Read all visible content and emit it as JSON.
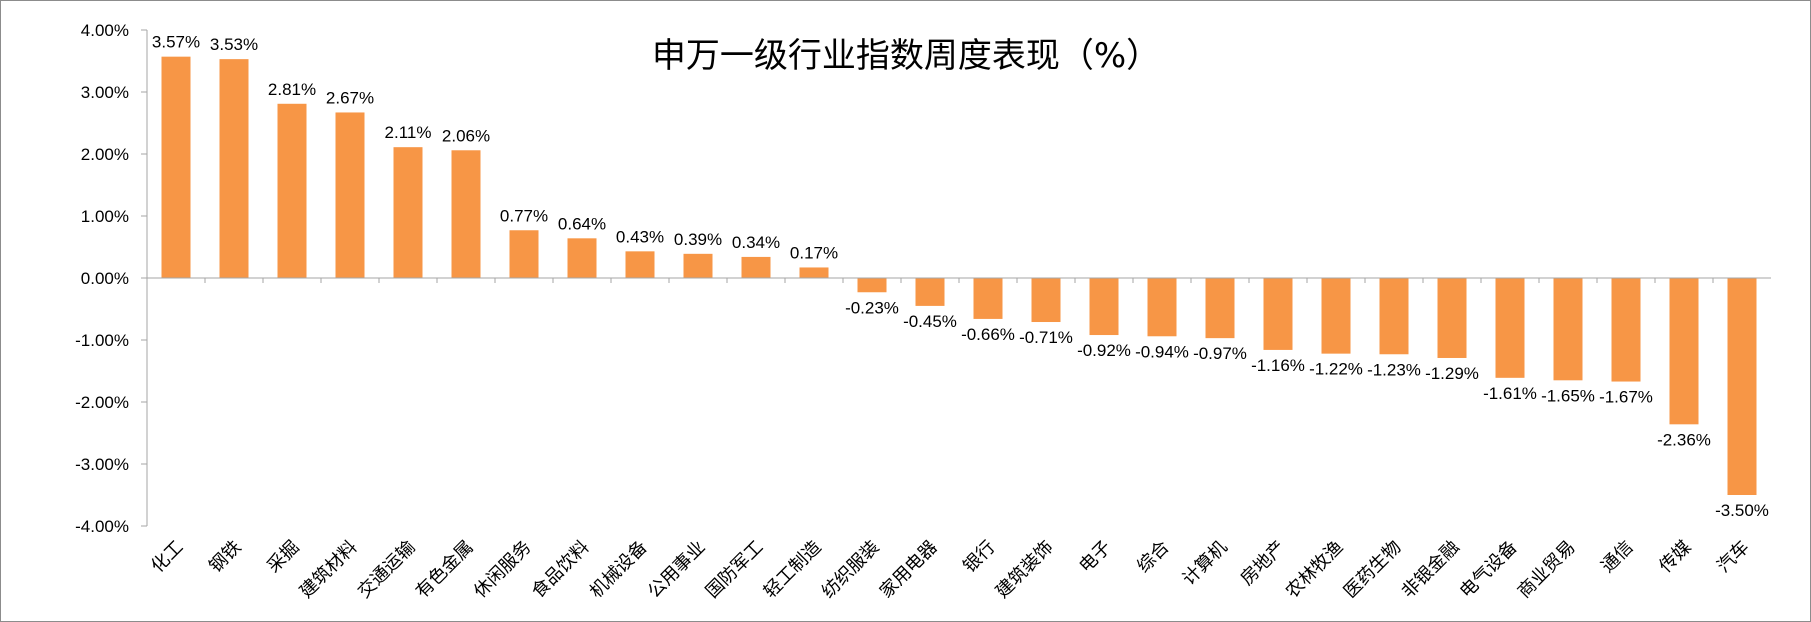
{
  "chart_data": {
    "type": "bar",
    "title": "申万一级行业指数周度表现（%）",
    "xlabel": "",
    "ylabel": "",
    "ylim": [
      -4.0,
      4.0
    ],
    "yticks": [
      4.0,
      3.0,
      2.0,
      1.0,
      0.0,
      -1.0,
      -2.0,
      -3.0,
      -4.0
    ],
    "ytick_labels": [
      "4.00%",
      "3.00%",
      "2.00%",
      "1.00%",
      "0.00%",
      "-1.00%",
      "-2.00%",
      "-3.00%",
      "-4.00%"
    ],
    "grid": false,
    "legend": "none",
    "bar_color": "#f79646",
    "categories": [
      "化工",
      "钢铁",
      "采掘",
      "建筑材料",
      "交通运输",
      "有色金属",
      "休闲服务",
      "食品饮料",
      "机械设备",
      "公用事业",
      "国防军工",
      "轻工制造",
      "纺织服装",
      "家用电器",
      "银行",
      "建筑装饰",
      "电子",
      "综合",
      "计算机",
      "房地产",
      "农林牧渔",
      "医药生物",
      "非银金融",
      "电气设备",
      "商业贸易",
      "通信",
      "传媒",
      "汽车"
    ],
    "values": [
      3.57,
      3.53,
      2.81,
      2.67,
      2.11,
      2.06,
      0.77,
      0.64,
      0.43,
      0.39,
      0.34,
      0.17,
      -0.23,
      -0.45,
      -0.66,
      -0.71,
      -0.92,
      -0.94,
      -0.97,
      -1.16,
      -1.22,
      -1.23,
      -1.29,
      -1.61,
      -1.65,
      -1.67,
      -2.36,
      -3.5
    ],
    "data_labels": [
      "3.57%",
      "3.53%",
      "2.81%",
      "2.67%",
      "2.11%",
      "2.06%",
      "0.77%",
      "0.64%",
      "0.43%",
      "0.39%",
      "0.34%",
      "0.17%",
      "-0.23%",
      "-0.45%",
      "-0.66%",
      "-0.71%",
      "-0.92%",
      "-0.94%",
      "-0.97%",
      "-1.16%",
      "-1.22%",
      "-1.23%",
      "-1.29%",
      "-1.61%",
      "-1.65%",
      "-1.67%",
      "-2.36%",
      "-3.50%"
    ]
  }
}
